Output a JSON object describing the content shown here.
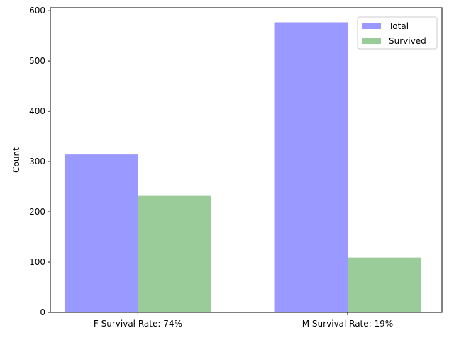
{
  "chart_data": {
    "type": "bar",
    "categories": [
      "F Survival Rate: 74%",
      "M Survival Rate: 19%"
    ],
    "series": [
      {
        "name": "Total",
        "values": [
          314,
          577
        ],
        "color": "#9999ff"
      },
      {
        "name": "Survived",
        "values": [
          233,
          109
        ],
        "color": "#99cc99"
      }
    ],
    "title": "",
    "xlabel": "",
    "ylabel": "Count",
    "ylim": [
      0,
      605.85
    ],
    "yticks": [
      0,
      100,
      200,
      300,
      400,
      500,
      600
    ],
    "legend_position": "top-right",
    "grid": false
  }
}
